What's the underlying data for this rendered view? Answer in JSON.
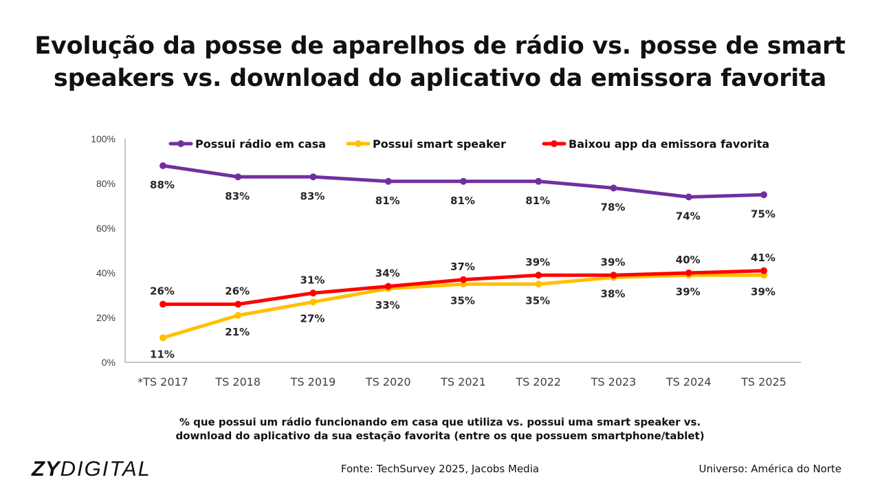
{
  "title": {
    "line1": "Evolução da posse de aparelhos de rádio vs. posse de smart",
    "line2": "speakers vs. download do aplicativo da emissora favorita"
  },
  "caption": {
    "line1": "% que possui um rádio funcionando em casa que utiliza vs. possui uma smart speaker vs.",
    "line2": "download do aplicativo da sua estação favorita (entre os que possuem smartphone/tablet)"
  },
  "footer": {
    "logo_bold": "ZY",
    "logo_light": "DIGITAL",
    "source": "Fonte: TechSurvey 2025, Jacobs Media",
    "universe": "Universo: América do Norte"
  },
  "chart_data": {
    "type": "line",
    "categories": [
      "*TS 2017",
      "TS 2018",
      "TS 2019",
      "TS 2020",
      "TS 2021",
      "TS 2022",
      "TS 2023",
      "TS 2024",
      "TS 2025"
    ],
    "yticks": [
      "0%",
      "20%",
      "40%",
      "60%",
      "80%",
      "100%"
    ],
    "ylim": [
      0,
      100
    ],
    "legend_position": "top",
    "grid": false,
    "series": [
      {
        "name": "Possui rádio em casa",
        "color": "#7030a0",
        "values": [
          88,
          83,
          83,
          81,
          81,
          81,
          78,
          74,
          75
        ],
        "labels": [
          "88%",
          "83%",
          "83%",
          "81%",
          "81%",
          "81%",
          "78%",
          "74%",
          "75%"
        ]
      },
      {
        "name": "Possui smart speaker",
        "color": "#ffc000",
        "values": [
          11,
          21,
          27,
          33,
          35,
          35,
          38,
          39,
          39
        ],
        "labels": [
          "11%",
          "21%",
          "27%",
          "33%",
          "35%",
          "35%",
          "38%",
          "39%",
          "39%"
        ]
      },
      {
        "name": "Baixou app da emissora favorita",
        "color": "#ff0000",
        "values": [
          26,
          26,
          31,
          34,
          37,
          39,
          39,
          40,
          41
        ],
        "labels": [
          "26%",
          "26%",
          "31%",
          "34%",
          "37%",
          "39%",
          "39%",
          "40%",
          "41%"
        ]
      }
    ]
  }
}
